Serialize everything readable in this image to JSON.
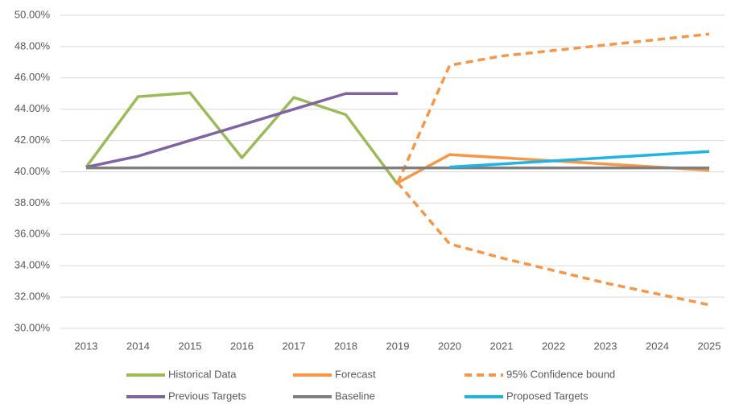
{
  "chart_data": {
    "type": "line",
    "categories": [
      "2013",
      "2014",
      "2015",
      "2016",
      "2017",
      "2018",
      "2019",
      "2020",
      "2021",
      "2022",
      "2023",
      "2024",
      "2025"
    ],
    "ylim": [
      30,
      50
    ],
    "yticks": [
      {
        "value": 30,
        "label": "30.00%"
      },
      {
        "value": 32,
        "label": "32.00%"
      },
      {
        "value": 34,
        "label": "34.00%"
      },
      {
        "value": 36,
        "label": "36.00%"
      },
      {
        "value": 38,
        "label": "38.00%"
      },
      {
        "value": 40,
        "label": "40.00%"
      },
      {
        "value": 42,
        "label": "42.00%"
      },
      {
        "value": 44,
        "label": "44.00%"
      },
      {
        "value": 46,
        "label": "46.00%"
      },
      {
        "value": 48,
        "label": "48.00%"
      },
      {
        "value": 50,
        "label": "50.00%"
      }
    ],
    "grid": true,
    "legend": "bottom",
    "series": [
      {
        "name": "Historical Data",
        "color": "#9bbb59",
        "dashed": false,
        "values": [
          40.3,
          44.8,
          45.05,
          40.9,
          44.75,
          43.65,
          39.2,
          null,
          null,
          null,
          null,
          null,
          null
        ]
      },
      {
        "name": "Forecast",
        "color": "#f79646",
        "dashed": false,
        "values": [
          null,
          null,
          null,
          null,
          null,
          null,
          39.3,
          41.1,
          40.9,
          40.7,
          40.5,
          40.3,
          40.1
        ]
      },
      {
        "name": "95% Confidence bound",
        "color": "#f79646",
        "dashed": true,
        "values": [
          null,
          null,
          null,
          null,
          null,
          null,
          39.3,
          46.8,
          47.4,
          47.75,
          48.1,
          48.45,
          48.8
        ],
        "lower": [
          null,
          null,
          null,
          null,
          null,
          null,
          39.3,
          35.4,
          34.5,
          33.7,
          32.9,
          32.2,
          31.5
        ]
      },
      {
        "name": "Previous Targets",
        "color": "#8064a2",
        "dashed": false,
        "values": [
          40.3,
          41,
          42,
          43,
          44,
          45,
          45,
          null,
          null,
          null,
          null,
          null,
          null
        ]
      },
      {
        "name": "Baseline",
        "color": "#7f7f7f",
        "dashed": false,
        "values": [
          40.25,
          40.25,
          40.25,
          40.25,
          40.25,
          40.25,
          40.25,
          40.25,
          40.25,
          40.25,
          40.25,
          40.25,
          40.25
        ]
      },
      {
        "name": "Proposed Targets",
        "color": "#1fb4e6",
        "dashed": false,
        "values": [
          null,
          null,
          null,
          null,
          null,
          null,
          null,
          40.3,
          40.5,
          40.7,
          40.9,
          41.1,
          41.3
        ]
      }
    ]
  }
}
